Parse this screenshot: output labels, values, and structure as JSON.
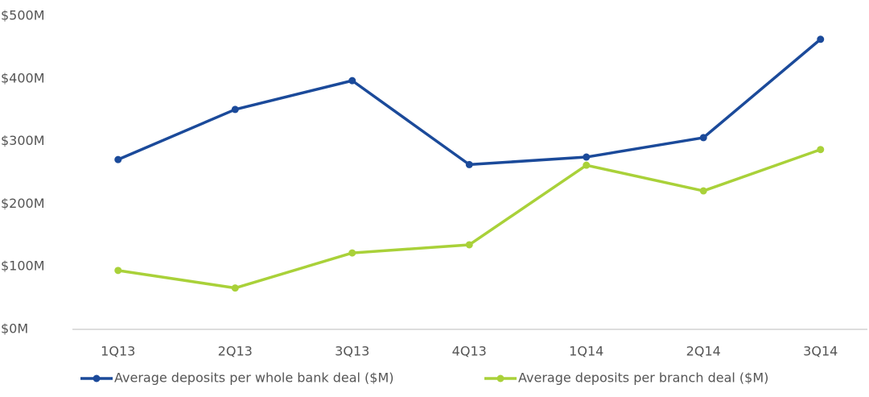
{
  "chart_data": {
    "type": "line",
    "categories": [
      "1Q13",
      "2Q13",
      "3Q13",
      "4Q13",
      "1Q14",
      "2Q14",
      "3Q14"
    ],
    "series": [
      {
        "name": "Average deposits per whole bank deal ($M)",
        "color": "#1b4a9a",
        "values": [
          271,
          351,
          397,
          263,
          275,
          306,
          463
        ]
      },
      {
        "name": "Average deposits per branch deal ($M)",
        "color": "#a9d139",
        "values": [
          94,
          66,
          122,
          135,
          262,
          221,
          287
        ]
      }
    ],
    "ylim": [
      0,
      500
    ],
    "yticks": [
      {
        "value": 0,
        "label": "$0M"
      },
      {
        "value": 100,
        "label": "$100M"
      },
      {
        "value": 200,
        "label": "$200M"
      },
      {
        "value": 300,
        "label": "$300M"
      },
      {
        "value": 400,
        "label": "$400M"
      },
      {
        "value": 500,
        "label": "$500M"
      }
    ],
    "grid": false,
    "legend": "bottom"
  }
}
